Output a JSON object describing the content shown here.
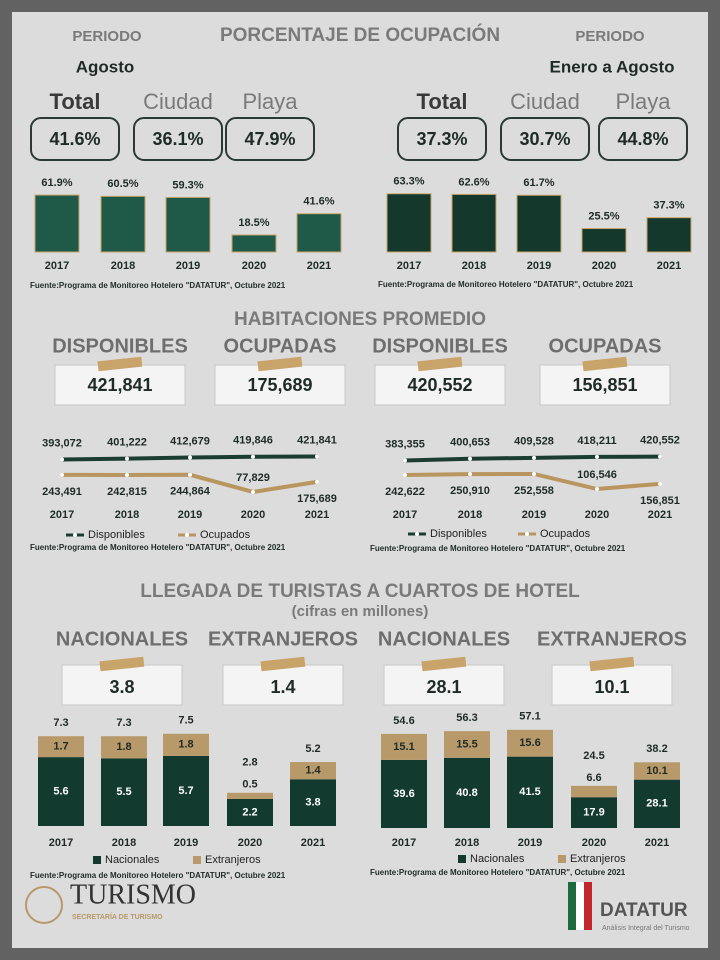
{
  "sections": [
    {
      "title": "PORCENTAJE DE OCUPACIÓN",
      "panels": [
        {
          "period_label": "PERIODO",
          "period": "Agosto",
          "boxes": [
            {
              "label": "Total",
              "value": "41.6%"
            },
            {
              "label": "Ciudad",
              "value": "36.1%"
            },
            {
              "label": "Playa",
              "value": "47.9%"
            }
          ]
        },
        {
          "period_label": "PERIODO",
          "period": "Enero a Agosto",
          "boxes": [
            {
              "label": "Total",
              "value": "37.3%"
            },
            {
              "label": "Ciudad",
              "value": "30.7%"
            },
            {
              "label": "Playa",
              "value": "44.8%"
            }
          ]
        }
      ]
    },
    {
      "title": "HABITACIONES PROMEDIO",
      "panels": [
        {
          "boxes": [
            {
              "label": "DISPONIBLES",
              "value": "421,841"
            },
            {
              "label": "OCUPADAS",
              "value": "175,689"
            }
          ]
        },
        {
          "boxes": [
            {
              "label": "DISPONIBLES",
              "value": "420,552"
            },
            {
              "label": "OCUPADAS",
              "value": "156,851"
            }
          ]
        }
      ]
    },
    {
      "title": "LLEGADA DE TURISTAS A CUARTOS DE HOTEL",
      "subtitle": "(cifras en millones)",
      "panels": [
        {
          "boxes": [
            {
              "label": "NACIONALES",
              "value": "3.8"
            },
            {
              "label": "EXTRANJEROS",
              "value": "1.4"
            }
          ]
        },
        {
          "boxes": [
            {
              "label": "NACIONALES",
              "value": "28.1"
            },
            {
              "label": "EXTRANJEROS",
              "value": "10.1"
            }
          ]
        }
      ]
    }
  ],
  "chart_data": [
    {
      "type": "bar",
      "categories": [
        "2017",
        "2018",
        "2019",
        "2020",
        "2021"
      ],
      "values": [
        61.9,
        60.5,
        59.3,
        18.5,
        41.6
      ],
      "value_labels": [
        "61.9%",
        "60.5%",
        "59.3%",
        "18.5%",
        "41.6%"
      ],
      "color": "#1f5a48",
      "source": "Fuente:Programa de Monitoreo Hotelero \"DATATUR\", Octubre 2021"
    },
    {
      "type": "bar",
      "categories": [
        "2017",
        "2018",
        "2019",
        "2020",
        "2021"
      ],
      "values": [
        63.3,
        62.6,
        61.7,
        25.5,
        37.3
      ],
      "value_labels": [
        "63.3%",
        "62.6%",
        "61.7%",
        "25.5%",
        "37.3%"
      ],
      "color": "#15382d",
      "source": "Fuente:Programa de Monitoreo Hotelero \"DATATUR\", Octubre 2021"
    },
    {
      "type": "line",
      "categories": [
        "2017",
        "2018",
        "2019",
        "2020",
        "2021"
      ],
      "series": [
        {
          "name": "Disponibles",
          "color": "#1b3d31",
          "values": [
            393072,
            401222,
            412679,
            419846,
            421841
          ],
          "value_labels": [
            "393,072",
            "401,222",
            "412,679",
            "419,846",
            "421,841"
          ]
        },
        {
          "name": "Ocupados",
          "color": "#b9965f",
          "values": [
            243491,
            242815,
            244864,
            77829,
            175689
          ],
          "value_labels": [
            "243,491",
            "242,815",
            "244,864",
            "77,829",
            "175,689"
          ]
        }
      ],
      "source": "Fuente:Programa de Monitoreo Hotelero \"DATATUR\", Octubre 2021"
    },
    {
      "type": "line",
      "categories": [
        "2017",
        "2018",
        "2019",
        "2020",
        "2021"
      ],
      "series": [
        {
          "name": "Disponibles",
          "color": "#1b3d31",
          "values": [
            383355,
            400653,
            409528,
            418211,
            420552
          ],
          "value_labels": [
            "383,355",
            "400,653",
            "409,528",
            "418,211",
            "420,552"
          ]
        },
        {
          "name": "Ocupados",
          "color": "#b9965f",
          "values": [
            242622,
            250910,
            252558,
            106546,
            156851
          ],
          "value_labels": [
            "242,622",
            "250,910",
            "252,558",
            "106,546",
            "156,851"
          ]
        }
      ],
      "source": "Fuente:Programa de Monitoreo Hotelero \"DATATUR\", Octubre 2021"
    },
    {
      "type": "bar",
      "stacked": true,
      "categories": [
        "2017",
        "2018",
        "2019",
        "2020",
        "2021"
      ],
      "series": [
        {
          "name": "Nacionales",
          "color": "#133a2e",
          "values": [
            5.6,
            5.5,
            5.7,
            2.2,
            3.8
          ]
        },
        {
          "name": "Extranjeros",
          "color": "#b8996a",
          "values": [
            1.7,
            1.8,
            1.8,
            0.5,
            1.4
          ]
        }
      ],
      "totals": [
        7.3,
        7.3,
        7.5,
        2.8,
        5.2
      ],
      "source": "Fuente:Programa de Monitoreo Hotelero \"DATATUR\", Octubre 2021"
    },
    {
      "type": "bar",
      "stacked": true,
      "categories": [
        "2017",
        "2018",
        "2019",
        "2020",
        "2021"
      ],
      "series": [
        {
          "name": "Nacionales",
          "color": "#133a2e",
          "values": [
            39.6,
            40.8,
            41.5,
            17.9,
            28.1
          ]
        },
        {
          "name": "Extranjeros",
          "color": "#b8996a",
          "values": [
            15.1,
            15.5,
            15.6,
            6.6,
            10.1
          ]
        }
      ],
      "totals": [
        54.6,
        56.3,
        57.1,
        24.5,
        38.2
      ],
      "source": "Fuente:Programa de Monitoreo Hotelero \"DATATUR\", Octubre 2021"
    }
  ],
  "footer": {
    "logo": "TURISMO",
    "ministry": "SECRETARÍA DE TURISMO",
    "brand": "DATATUR",
    "tagline": "Análisis Integral del Turismo"
  }
}
